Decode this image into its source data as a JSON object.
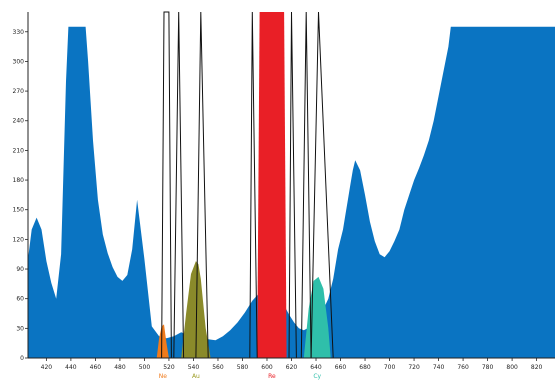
{
  "chart_data": {
    "type": "area",
    "title": "",
    "xlabel": "",
    "ylabel": "",
    "xlim": [
      405,
      835
    ],
    "ylim": [
      0,
      350
    ],
    "x_ticks": [
      420,
      440,
      460,
      480,
      500,
      520,
      540,
      560,
      580,
      600,
      620,
      640,
      660,
      680,
      700,
      720,
      740,
      760,
      780,
      800,
      820
    ],
    "y_ticks": [
      0,
      30,
      60,
      90,
      120,
      150,
      180,
      210,
      240,
      270,
      300,
      330
    ],
    "grid": false,
    "background_spectrum": {
      "color": "#0a74c2",
      "x": [
        405,
        408,
        412,
        416,
        420,
        424,
        428,
        432,
        436,
        438,
        440,
        450,
        452,
        454,
        458,
        462,
        466,
        470,
        474,
        478,
        482,
        486,
        490,
        494,
        500,
        506,
        512,
        518,
        524,
        530,
        538,
        546,
        552,
        558,
        564,
        570,
        576,
        582,
        588,
        594,
        600,
        606,
        612,
        618,
        622,
        626,
        630,
        636,
        640,
        644,
        650,
        654,
        658,
        662,
        664,
        666,
        668,
        670,
        672,
        676,
        680,
        684,
        688,
        692,
        696,
        700,
        704,
        708,
        712,
        716,
        720,
        724,
        728,
        732,
        736,
        740,
        744,
        748,
        750,
        754,
        760,
        780,
        800,
        820,
        835
      ],
      "y": [
        100,
        130,
        142,
        130,
        98,
        76,
        60,
        105,
        280,
        335,
        335,
        335,
        335,
        300,
        220,
        160,
        125,
        106,
        92,
        82,
        78,
        84,
        110,
        160,
        100,
        32,
        22,
        20,
        22,
        26,
        22,
        20,
        19,
        18,
        22,
        28,
        36,
        46,
        58,
        66,
        67,
        66,
        58,
        44,
        36,
        30,
        28,
        32,
        38,
        44,
        60,
        80,
        110,
        130,
        145,
        160,
        175,
        190,
        200,
        190,
        165,
        138,
        118,
        105,
        102,
        108,
        118,
        130,
        150,
        165,
        180,
        192,
        205,
        220,
        240,
        265,
        290,
        315,
        335,
        335,
        335,
        335,
        335,
        335,
        335
      ]
    },
    "channels": [
      {
        "label": "Ne",
        "color": "#f07b1c",
        "label_color": "#f07b1c",
        "x": [
          510,
          512,
          514,
          516,
          518,
          520
        ],
        "y": [
          0,
          20,
          32,
          34,
          15,
          0
        ]
      },
      {
        "label": "Au",
        "color": "#8a8a2a",
        "label_color": "#9a9a20",
        "x": [
          530,
          534,
          538,
          542,
          544,
          546,
          550,
          554
        ],
        "y": [
          0,
          45,
          85,
          98,
          95,
          80,
          30,
          0
        ]
      },
      {
        "label": "Re",
        "color": "#e91f26",
        "label_color": "#e91f26",
        "x": [
          592,
          594,
          614,
          616
        ],
        "y": [
          0,
          350,
          350,
          0
        ]
      },
      {
        "label": "Cy",
        "color": "#2fbfaa",
        "label_color": "#2fbfaa",
        "x": [
          630,
          634,
          638,
          642,
          646,
          650,
          652
        ],
        "y": [
          0,
          50,
          78,
          82,
          70,
          30,
          0
        ]
      }
    ],
    "filter_lines": [
      {
        "x": [
          514,
          516,
          520,
          522
        ]
      },
      {
        "x": [
          524,
          528,
          528,
          532
        ]
      },
      {
        "x": [
          542,
          546,
          546,
          552
        ]
      },
      {
        "x": [
          586,
          588,
          588,
          592
        ]
      },
      {
        "x": [
          618,
          620,
          620,
          624
        ]
      },
      {
        "x": [
          628,
          632,
          632,
          636
        ]
      },
      {
        "x": [
          636,
          642,
          642,
          654
        ]
      }
    ]
  }
}
